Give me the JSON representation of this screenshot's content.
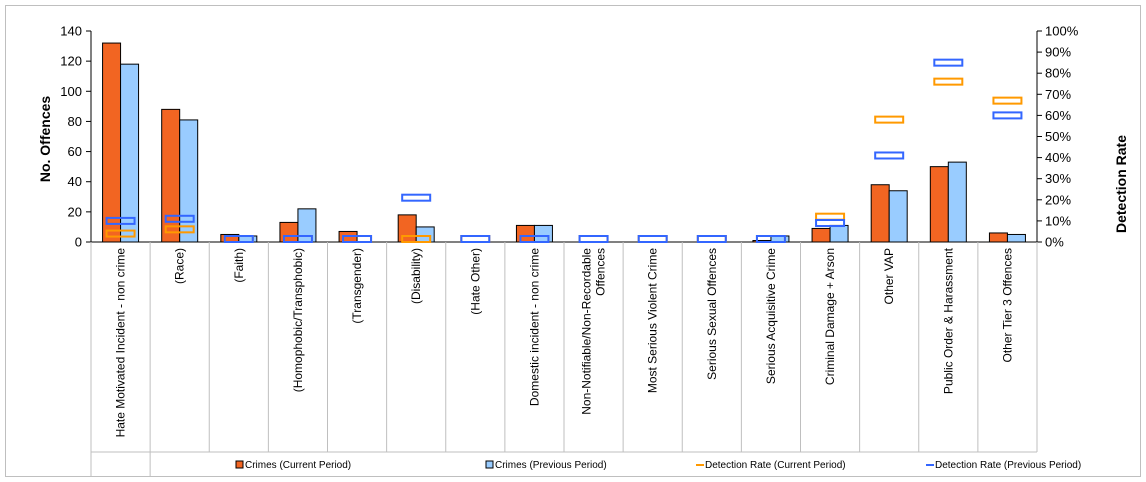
{
  "chart_data": {
    "type": "bar",
    "title": "",
    "ylabel": "No. Offences",
    "y2label": "Detection Rate",
    "ylim": [
      0,
      140
    ],
    "yticks": [
      "0",
      "20",
      "40",
      "60",
      "80",
      "100",
      "120",
      "140"
    ],
    "y2lim": [
      0,
      100
    ],
    "y2ticks": [
      "0%",
      "10%",
      "20%",
      "30%",
      "40%",
      "50%",
      "60%",
      "70%",
      "80%",
      "90%",
      "100%"
    ],
    "grid": false,
    "legend_position": "bottom",
    "categories": [
      "Hate Motivated Incident - non crime",
      "(Race)",
      "(Faith)",
      "(Homophobic/Transphobic)",
      "(Transgender)",
      "(Disability)",
      "(Hate Other)",
      "Domestic incident - non crime",
      "Non-Notifiable/Non-Recordable Offences",
      "Most Serious Violent Crime",
      "Serious Sexual Offences",
      "Serious Acquisitive Crime",
      "Criminal Damage + Arson",
      "Other VAP",
      "Public Order & Harassment",
      "Other Tier 3 Offences"
    ],
    "series": [
      {
        "name": "Crimes (Current Period)",
        "kind": "bar",
        "axis": "left",
        "color": "#f26522",
        "values": [
          132,
          88,
          5,
          13,
          7,
          18,
          0,
          11,
          0,
          0,
          0,
          1,
          9,
          38,
          50,
          6
        ]
      },
      {
        "name": "Crimes (Previous Period)",
        "kind": "bar",
        "axis": "left",
        "color": "#99ccff",
        "values": [
          118,
          81,
          4,
          22,
          0,
          10,
          0,
          11,
          0,
          0,
          0,
          4,
          11,
          34,
          53,
          5
        ]
      },
      {
        "name": "Detection Rate (Current Period)",
        "kind": "marker",
        "axis": "right",
        "color": "#ff9900",
        "values": [
          4,
          6,
          0,
          0,
          0,
          0,
          0,
          0,
          0,
          0,
          0,
          0,
          12,
          58,
          76,
          67
        ]
      },
      {
        "name": "Detection Rate (Previous Period)",
        "kind": "marker",
        "axis": "right",
        "color": "#3366ff",
        "values": [
          10,
          11,
          0,
          0,
          0,
          21,
          0,
          0,
          0,
          0,
          0,
          0,
          9,
          41,
          85,
          60
        ]
      }
    ]
  }
}
